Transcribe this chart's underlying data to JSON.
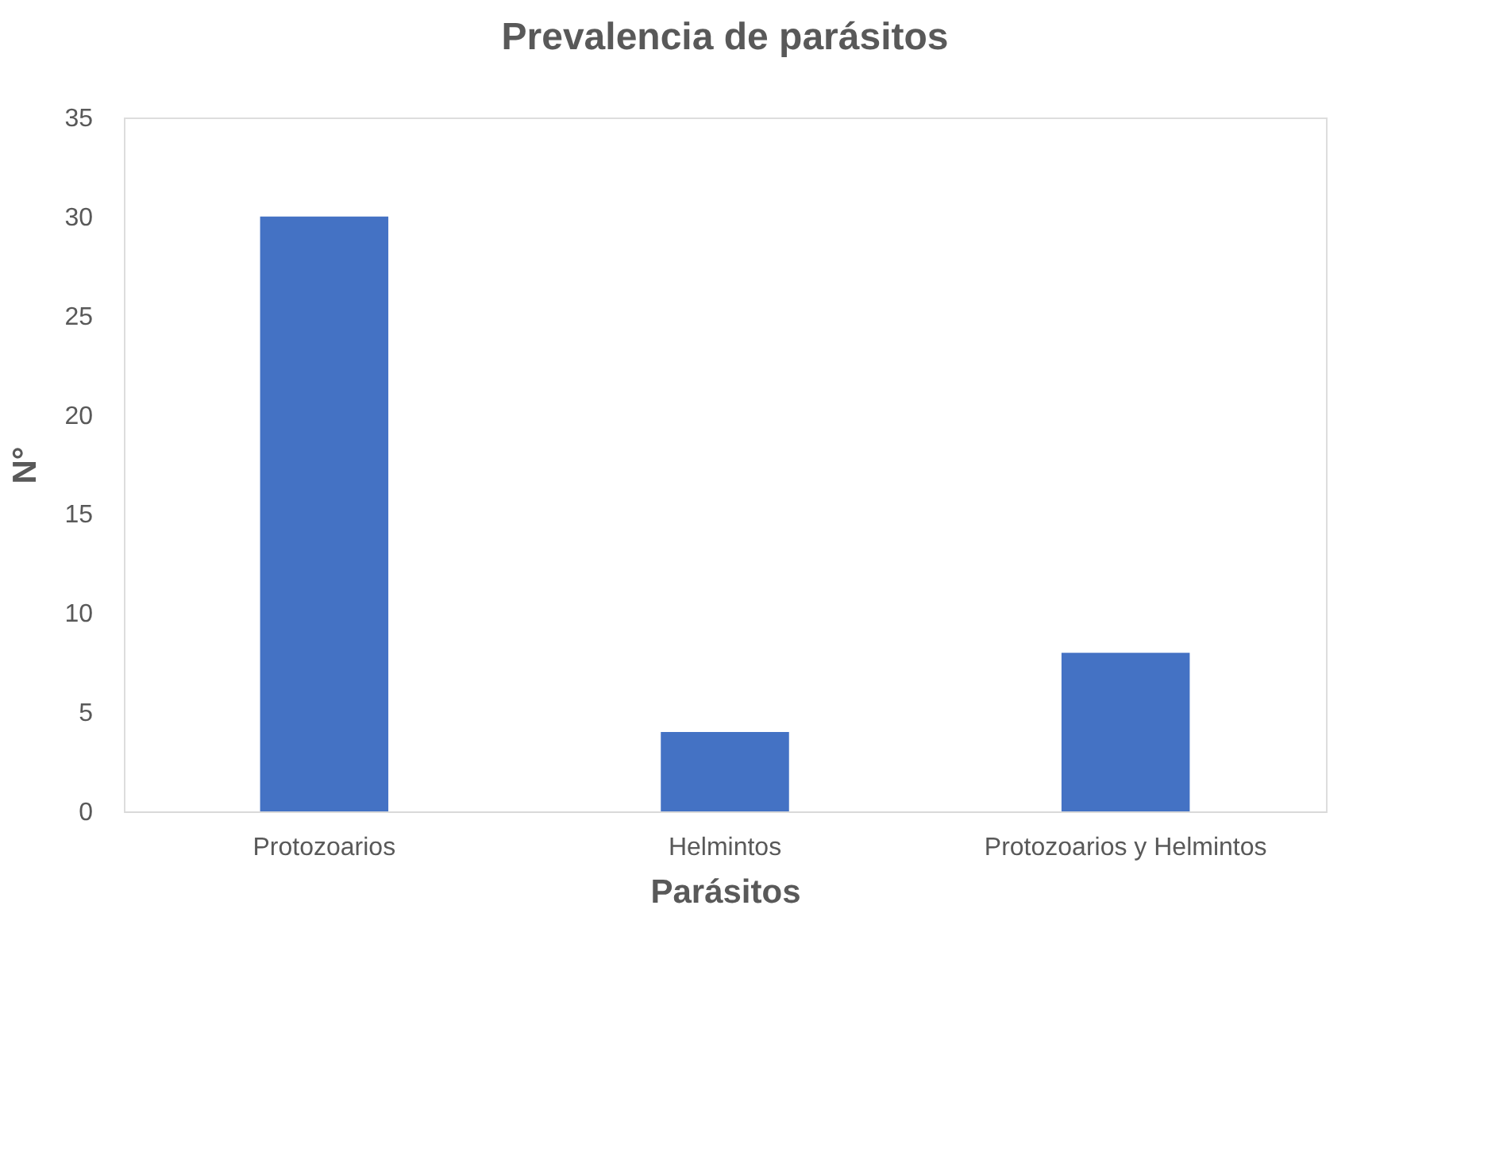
{
  "chart_data": {
    "type": "bar",
    "title": "Prevalencia de parásitos",
    "xlabel": "Parásitos",
    "ylabel": "N°",
    "categories": [
      "Protozoarios",
      "Helmintos",
      "Protozoarios y Helmintos"
    ],
    "values": [
      30,
      4,
      8
    ],
    "color": "#4472c4",
    "ylim": [
      0,
      35
    ],
    "yticks": [
      0,
      5,
      10,
      15,
      20,
      25,
      30,
      35
    ]
  }
}
